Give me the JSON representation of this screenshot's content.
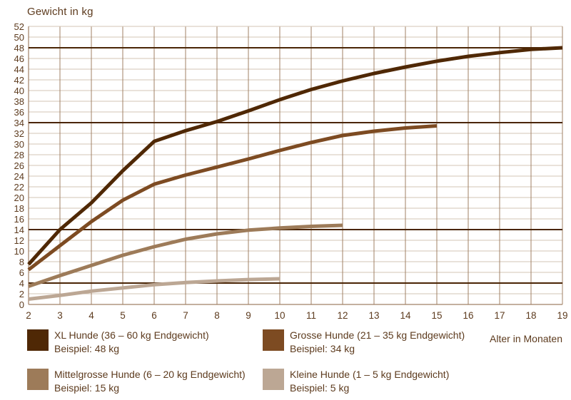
{
  "chart_data": {
    "type": "line",
    "title": "Gewicht in kg",
    "xlabel": "Alter in Monaten",
    "ylabel": "Gewicht in kg",
    "xlim": [
      2,
      19
    ],
    "ylim": [
      0,
      52
    ],
    "x_ticks": [
      2,
      3,
      4,
      5,
      6,
      7,
      8,
      9,
      10,
      11,
      12,
      13,
      14,
      15,
      16,
      17,
      18,
      19
    ],
    "y_ticks": [
      0,
      2,
      4,
      6,
      8,
      10,
      12,
      14,
      16,
      18,
      20,
      22,
      24,
      26,
      28,
      30,
      32,
      34,
      36,
      38,
      40,
      42,
      44,
      46,
      48,
      50,
      52
    ],
    "grid": "on",
    "legend_position": "bottom",
    "reference_lines": [
      {
        "value": 48,
        "color": "#4a2506"
      },
      {
        "value": 34,
        "color": "#4a2506"
      },
      {
        "value": 14,
        "color": "#4a2506"
      },
      {
        "value": 4,
        "color": "#4a2506"
      }
    ],
    "series": [
      {
        "name": "XL Hunde (36 – 60 kg Endgewicht)",
        "example": "Beispiel: 48 kg",
        "color": "#4f2805",
        "x": [
          2,
          3,
          4,
          5,
          6,
          7,
          8,
          9,
          10,
          11,
          12,
          13,
          14,
          15,
          16,
          17,
          18,
          19
        ],
        "values": [
          7.5,
          14,
          19,
          25,
          30.5,
          32.5,
          34.2,
          36.2,
          38.3,
          40.2,
          41.8,
          43.2,
          44.4,
          45.5,
          46.4,
          47.1,
          47.7,
          48
        ]
      },
      {
        "name": "Grosse Hunde (21 – 35 kg Endgewicht)",
        "example": "Beispiel: 34 kg",
        "color": "#7d4b22",
        "x": [
          2,
          3,
          4,
          5,
          6,
          7,
          8,
          9,
          10,
          11,
          12,
          13,
          14,
          15
        ],
        "values": [
          6.5,
          11,
          15.5,
          19.5,
          22.5,
          24.2,
          25.7,
          27.2,
          28.8,
          30.3,
          31.6,
          32.4,
          33,
          33.4
        ]
      },
      {
        "name": "Mittelgrosse Hunde (6 – 20 kg Endgewicht)",
        "example": "Beispiel: 15 kg",
        "color": "#9d7b59",
        "x": [
          2,
          3,
          4,
          5,
          6,
          7,
          8,
          9,
          10,
          11,
          12
        ],
        "values": [
          3.4,
          5.4,
          7.3,
          9.2,
          10.8,
          12.2,
          13.2,
          13.9,
          14.3,
          14.6,
          14.8
        ]
      },
      {
        "name": "Kleine Hunde (1 – 5 kg Endgewicht)",
        "example": "Beispiel: 5 kg",
        "color": "#bca794",
        "x": [
          2,
          3,
          4,
          5,
          6,
          7,
          8,
          9,
          10
        ],
        "values": [
          1,
          1.7,
          2.5,
          3.1,
          3.7,
          4.1,
          4.4,
          4.65,
          4.8
        ]
      }
    ],
    "colors": {
      "text": "#5d3b1e",
      "h_grid": "#d3c5b5",
      "v_grid": "#a08066",
      "plot_border": "#a08066",
      "background": "#ffffff"
    }
  }
}
